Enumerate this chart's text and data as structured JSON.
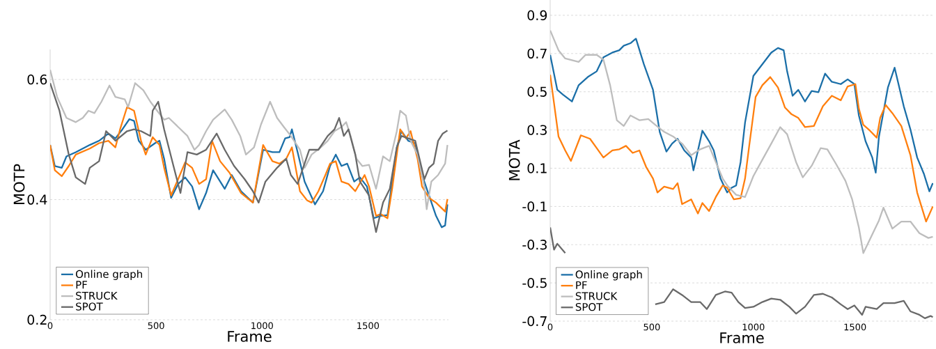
{
  "chart_data": [
    {
      "type": "line",
      "xlabel": "Frame",
      "ylabel": "MOTP",
      "xlim": [
        0,
        1880
      ],
      "ylim": [
        0.2,
        0.65
      ],
      "xticks": [
        0,
        500,
        1000,
        1500
      ],
      "yticks": [
        0.2,
        0.4,
        0.6
      ],
      "grid": "y",
      "legend": "bottom left",
      "line_style": "solid",
      "series": [
        {
          "name": "Online graph",
          "color": "#1b6fa8",
          "x": [
            0,
            22,
            55,
            77,
            121,
            187,
            231,
            275,
            308,
            341,
            374,
            396,
            418,
            451,
            495,
            516,
            538,
            571,
            604,
            637,
            670,
            703,
            736,
            769,
            824,
            857,
            901,
            957,
            1005,
            1049,
            1082,
            1109,
            1130,
            1141,
            1168,
            1201,
            1250,
            1288,
            1321,
            1348,
            1375,
            1402,
            1435,
            1462,
            1495,
            1527,
            1560,
            1592,
            1614,
            1636,
            1658,
            1690,
            1723,
            1755,
            1788,
            1821,
            1848,
            1864,
            1875
          ],
          "values": [
            0.491,
            0.456,
            0.453,
            0.472,
            0.479,
            0.491,
            0.498,
            0.51,
            0.502,
            0.517,
            0.534,
            0.531,
            0.498,
            0.483,
            0.494,
            0.498,
            0.468,
            0.403,
            0.426,
            0.437,
            0.422,
            0.384,
            0.411,
            0.449,
            0.418,
            0.441,
            0.414,
            0.395,
            0.483,
            0.479,
            0.479,
            0.502,
            0.504,
            0.517,
            0.479,
            0.43,
            0.392,
            0.414,
            0.456,
            0.475,
            0.456,
            0.46,
            0.43,
            0.437,
            0.422,
            0.369,
            0.373,
            0.374,
            0.43,
            0.487,
            0.514,
            0.498,
            0.494,
            0.441,
            0.407,
            0.373,
            0.354,
            0.357,
            0.392
          ]
        },
        {
          "name": "PF",
          "color": "#ff7f0e",
          "x": [
            0,
            22,
            55,
            88,
            121,
            187,
            231,
            275,
            308,
            330,
            363,
            396,
            429,
            451,
            484,
            516,
            538,
            571,
            604,
            637,
            670,
            703,
            736,
            764,
            802,
            846,
            901,
            957,
            1005,
            1049,
            1082,
            1114,
            1141,
            1179,
            1212,
            1234,
            1266,
            1299,
            1321,
            1348,
            1375,
            1408,
            1440,
            1484,
            1505,
            1538,
            1560,
            1592,
            1614,
            1652,
            1679,
            1701,
            1734,
            1755,
            1788,
            1821,
            1853,
            1864,
            1875
          ],
          "values": [
            0.491,
            0.449,
            0.439,
            0.456,
            0.475,
            0.485,
            0.494,
            0.498,
            0.487,
            0.517,
            0.554,
            0.548,
            0.498,
            0.475,
            0.504,
            0.491,
            0.453,
            0.407,
            0.434,
            0.462,
            0.453,
            0.426,
            0.434,
            0.498,
            0.464,
            0.445,
            0.411,
            0.395,
            0.491,
            0.464,
            0.46,
            0.468,
            0.487,
            0.414,
            0.399,
            0.395,
            0.414,
            0.441,
            0.46,
            0.464,
            0.43,
            0.426,
            0.414,
            0.441,
            0.422,
            0.373,
            0.376,
            0.369,
            0.418,
            0.517,
            0.502,
            0.514,
            0.468,
            0.422,
            0.403,
            0.395,
            0.384,
            0.38,
            0.401
          ]
        },
        {
          "name": "STRUCK",
          "color": "#bdbdbd",
          "x": [
            0,
            33,
            77,
            121,
            154,
            181,
            209,
            242,
            280,
            308,
            352,
            368,
            401,
            440,
            473,
            505,
            538,
            560,
            604,
            648,
            681,
            703,
            736,
            769,
            824,
            857,
            897,
            924,
            962,
            995,
            1038,
            1071,
            1103,
            1136,
            1179,
            1201,
            1234,
            1277,
            1310,
            1342,
            1375,
            1397,
            1418,
            1446,
            1473,
            1505,
            1538,
            1571,
            1603,
            1636,
            1652,
            1679,
            1701,
            1734,
            1766,
            1777,
            1799,
            1831,
            1864,
            1875
          ],
          "values": [
            0.616,
            0.571,
            0.536,
            0.529,
            0.536,
            0.548,
            0.544,
            0.563,
            0.59,
            0.571,
            0.567,
            0.554,
            0.594,
            0.582,
            0.563,
            0.548,
            0.533,
            0.536,
            0.521,
            0.506,
            0.483,
            0.491,
            0.514,
            0.533,
            0.55,
            0.533,
            0.506,
            0.475,
            0.487,
            0.525,
            0.563,
            0.536,
            0.521,
            0.506,
            0.483,
            0.453,
            0.475,
            0.487,
            0.498,
            0.514,
            0.521,
            0.529,
            0.506,
            0.468,
            0.456,
            0.458,
            0.418,
            0.472,
            0.464,
            0.514,
            0.548,
            0.54,
            0.498,
            0.475,
            0.422,
            0.384,
            0.43,
            0.441,
            0.46,
            0.491
          ]
        },
        {
          "name": "SPOT",
          "color": "#696969",
          "x": [
            0,
            44,
            88,
            121,
            165,
            187,
            231,
            264,
            308,
            363,
            396,
            429,
            473,
            484,
            510,
            538,
            582,
            615,
            648,
            692,
            736,
            786,
            824,
            868,
            918,
            957,
            984,
            1016,
            1071,
            1114,
            1136,
            1168,
            1223,
            1266,
            1310,
            1342,
            1364,
            1386,
            1408,
            1440,
            1462,
            1505,
            1521,
            1538,
            1571,
            1603,
            1636,
            1658,
            1690,
            1723,
            1766,
            1788,
            1810,
            1831,
            1853,
            1875
          ],
          "values": [
            0.594,
            0.548,
            0.475,
            0.437,
            0.426,
            0.453,
            0.464,
            0.514,
            0.498,
            0.514,
            0.517,
            0.514,
            0.506,
            0.548,
            0.563,
            0.517,
            0.456,
            0.411,
            0.479,
            0.475,
            0.483,
            0.51,
            0.483,
            0.456,
            0.434,
            0.414,
            0.395,
            0.43,
            0.453,
            0.468,
            0.441,
            0.426,
            0.483,
            0.483,
            0.506,
            0.517,
            0.536,
            0.506,
            0.517,
            0.475,
            0.43,
            0.407,
            0.376,
            0.346,
            0.395,
            0.418,
            0.487,
            0.506,
            0.502,
            0.498,
            0.434,
            0.453,
            0.46,
            0.498,
            0.51,
            0.515
          ]
        }
      ]
    },
    {
      "type": "line",
      "xlabel": "Frame",
      "ylabel": "MOTA",
      "xlim": [
        0,
        1885
      ],
      "ylim": [
        -0.7,
        0.98
      ],
      "xticks": [
        0,
        500,
        1000,
        1500
      ],
      "yticks": [
        -0.7,
        -0.5,
        -0.3,
        -0.1,
        0.1,
        0.3,
        0.5,
        0.7,
        0.9
      ],
      "grid": "y",
      "legend": "bottom left",
      "line_style": "solid",
      "series": [
        {
          "name": "Online graph",
          "color": "#1b6fa8",
          "x": [
            0,
            35,
            63,
            107,
            140,
            185,
            229,
            262,
            306,
            340,
            362,
            395,
            422,
            461,
            506,
            539,
            572,
            600,
            627,
            660,
            694,
            705,
            749,
            782,
            805,
            838,
            871,
            893,
            915,
            937,
            959,
            1000,
            1044,
            1088,
            1121,
            1149,
            1166,
            1193,
            1221,
            1254,
            1287,
            1320,
            1353,
            1386,
            1430,
            1464,
            1497,
            1519,
            1552,
            1585,
            1602,
            1618,
            1662,
            1695,
            1740,
            1773,
            1806,
            1839,
            1866,
            1883
          ],
          "values": [
            0.693,
            0.51,
            0.485,
            0.449,
            0.534,
            0.577,
            0.607,
            0.68,
            0.705,
            0.717,
            0.741,
            0.754,
            0.778,
            0.644,
            0.51,
            0.29,
            0.187,
            0.229,
            0.254,
            0.193,
            0.156,
            0.089,
            0.296,
            0.241,
            0.193,
            0.046,
            -0.027,
            -0.002,
            0.01,
            0.132,
            0.339,
            0.583,
            0.644,
            0.705,
            0.729,
            0.717,
            0.607,
            0.479,
            0.51,
            0.449,
            0.504,
            0.498,
            0.595,
            0.552,
            0.54,
            0.565,
            0.54,
            0.376,
            0.241,
            0.156,
            0.077,
            0.266,
            0.522,
            0.626,
            0.424,
            0.302,
            0.156,
            0.071,
            -0.021,
            0.022
          ]
        },
        {
          "name": "PF",
          "color": "#ff7f0e",
          "x": [
            0,
            41,
            74,
            102,
            151,
            196,
            229,
            262,
            306,
            340,
            373,
            406,
            439,
            472,
            506,
            528,
            561,
            605,
            627,
            649,
            694,
            727,
            749,
            782,
            815,
            849,
            871,
            904,
            937,
            959,
            978,
            1011,
            1044,
            1083,
            1121,
            1155,
            1188,
            1221,
            1254,
            1298,
            1342,
            1386,
            1430,
            1464,
            1502,
            1519,
            1541,
            1574,
            1607,
            1624,
            1651,
            1684,
            1728,
            1773,
            1806,
            1850,
            1883
          ],
          "values": [
            0.589,
            0.266,
            0.193,
            0.138,
            0.272,
            0.254,
            0.205,
            0.156,
            0.193,
            0.199,
            0.217,
            0.18,
            0.193,
            0.107,
            0.046,
            -0.027,
            0.004,
            -0.009,
            0.022,
            -0.088,
            -0.063,
            -0.137,
            -0.082,
            -0.124,
            -0.051,
            0.01,
            -0.002,
            -0.063,
            -0.057,
            0.046,
            0.205,
            0.473,
            0.534,
            0.577,
            0.522,
            0.418,
            0.382,
            0.363,
            0.315,
            0.321,
            0.424,
            0.479,
            0.455,
            0.528,
            0.54,
            0.412,
            0.327,
            0.296,
            0.26,
            0.363,
            0.431,
            0.388,
            0.321,
            0.168,
            -0.027,
            -0.179,
            -0.1
          ]
        },
        {
          "name": "STRUCK",
          "color": "#bdbdbd",
          "x": [
            0,
            41,
            74,
            118,
            140,
            174,
            229,
            262,
            295,
            328,
            362,
            395,
            439,
            483,
            517,
            561,
            605,
            649,
            694,
            738,
            782,
            815,
            849,
            871,
            915,
            959,
            1000,
            1044,
            1088,
            1132,
            1166,
            1210,
            1243,
            1287,
            1331,
            1364,
            1408,
            1453,
            1486,
            1519,
            1541,
            1574,
            1618,
            1640,
            1684,
            1728,
            1773,
            1817,
            1861,
            1883
          ],
          "values": [
            0.821,
            0.717,
            0.674,
            0.662,
            0.656,
            0.693,
            0.693,
            0.668,
            0.534,
            0.351,
            0.321,
            0.376,
            0.351,
            0.357,
            0.327,
            0.29,
            0.266,
            0.229,
            0.168,
            0.199,
            0.217,
            0.132,
            0.046,
            0.01,
            -0.039,
            -0.051,
            0.059,
            0.144,
            0.229,
            0.315,
            0.278,
            0.132,
            0.052,
            0.113,
            0.205,
            0.199,
            0.12,
            0.034,
            -0.063,
            -0.21,
            -0.344,
            -0.271,
            -0.173,
            -0.106,
            -0.216,
            -0.179,
            -0.179,
            -0.24,
            -0.265,
            -0.259
          ]
        },
        {
          "name": "SPOT",
          "color": "#696969",
          "x": [
            0,
            19,
            35,
            74,
            300,
            517,
            561,
            605,
            649,
            694,
            738,
            771,
            815,
            860,
            893,
            926,
            959,
            1000,
            1044,
            1088,
            1132,
            1177,
            1210,
            1254,
            1298,
            1342,
            1386,
            1430,
            1464,
            1497,
            1535,
            1552,
            1607,
            1640,
            1695,
            1740,
            1773,
            1817,
            1844,
            1872,
            1883
          ],
          "values": [
            -0.21,
            -0.326,
            -0.295,
            -0.344,
            null,
            -0.612,
            -0.6,
            -0.533,
            -0.563,
            -0.6,
            -0.6,
            -0.637,
            -0.563,
            -0.545,
            -0.551,
            -0.6,
            -0.631,
            -0.625,
            -0.6,
            -0.582,
            -0.588,
            -0.625,
            -0.661,
            -0.625,
            -0.563,
            -0.557,
            -0.576,
            -0.612,
            -0.637,
            -0.618,
            -0.667,
            -0.625,
            -0.637,
            -0.606,
            -0.606,
            -0.594,
            -0.649,
            -0.667,
            -0.685,
            -0.673,
            -0.679
          ]
        }
      ]
    }
  ]
}
